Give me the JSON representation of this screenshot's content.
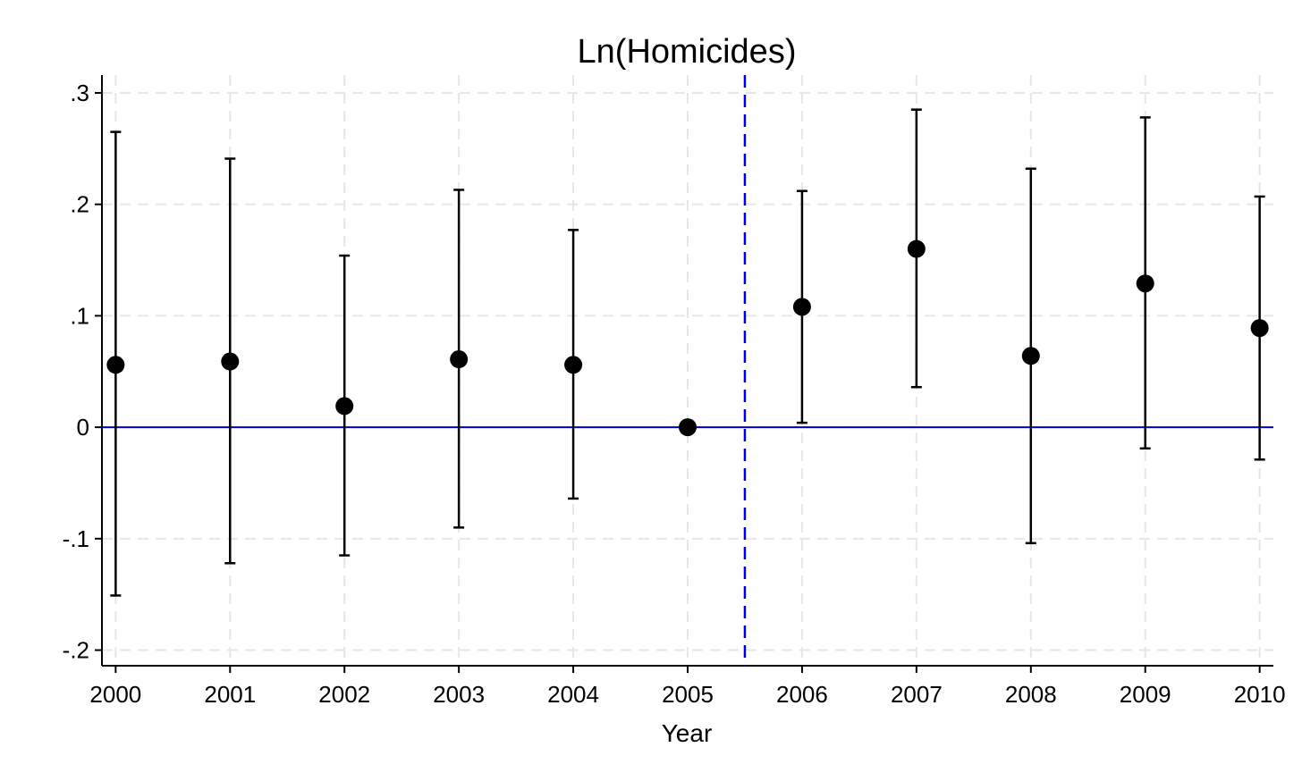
{
  "chart_data": {
    "type": "scatter",
    "title": "Ln(Homicides)",
    "xlabel": "Year",
    "ylabel": "",
    "x": [
      2000,
      2001,
      2002,
      2003,
      2004,
      2005,
      2006,
      2007,
      2008,
      2009,
      2010
    ],
    "x_tick_labels": [
      "2000",
      "2001",
      "2002",
      "2003",
      "2004",
      "2005",
      "2006",
      "2007",
      "2008",
      "2009",
      "2010"
    ],
    "series": [
      {
        "estimate": [
          0.056,
          0.059,
          0.019,
          0.061,
          0.056,
          0.0,
          0.108,
          0.16,
          0.064,
          0.129,
          0.089
        ],
        "ci_low": [
          -0.151,
          -0.122,
          -0.115,
          -0.09,
          -0.064,
          null,
          0.004,
          0.036,
          -0.104,
          -0.019,
          -0.029
        ],
        "ci_high": [
          0.265,
          0.241,
          0.154,
          0.213,
          0.177,
          null,
          0.212,
          0.285,
          0.232,
          0.278,
          0.207
        ]
      }
    ],
    "y_ticks": [
      0.3,
      0.2,
      0.1,
      0,
      -0.1,
      -0.2
    ],
    "y_tick_labels": [
      ".3",
      ".2",
      ".1",
      "0",
      "-.1",
      "-.2"
    ],
    "xlim": [
      1999.88,
      2010.12
    ],
    "ylim": [
      -0.214,
      0.316
    ],
    "reference_lines": {
      "horizontal_y": 0,
      "vertical_x": 2005.5
    },
    "grid": true,
    "colors": {
      "marker": "#000000",
      "error_bar": "#000000",
      "reference_line": "#0000cc",
      "grid": "#e6e6e6",
      "axis": "#000000"
    }
  }
}
